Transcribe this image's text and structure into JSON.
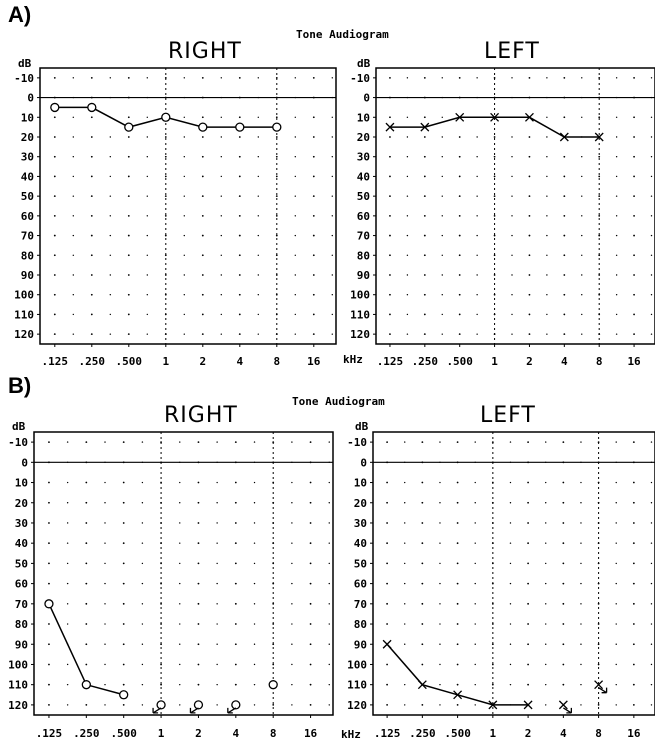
{
  "panels": [
    {
      "label": "A)",
      "system_title": "Tone Audiogram",
      "y_unit": "dB",
      "x_unit_right": "",
      "x_unit_left": "kHz"
    },
    {
      "label": "B)",
      "system_title": "Tone Audiogram",
      "y_unit": "dB",
      "x_unit_right": "",
      "x_unit_left": "kHz"
    }
  ],
  "chart_data": [
    {
      "type": "line",
      "panel": "A)",
      "title": "RIGHT",
      "ylabel": "dB",
      "y_ticks": [
        -10,
        0,
        10,
        20,
        30,
        40,
        50,
        60,
        70,
        80,
        90,
        100,
        110,
        120
      ],
      "ylim": [
        -15,
        125
      ],
      "y_reversed": true,
      "x_ticks": [
        ".125",
        ".250",
        ".500",
        "1",
        "2",
        "4",
        "8",
        "16"
      ],
      "symbol": "o",
      "series": [
        {
          "x": [
            ".125",
            ".250",
            ".500",
            "1",
            "2",
            "4",
            "8"
          ],
          "values": [
            5,
            5,
            15,
            10,
            15,
            15,
            15
          ]
        }
      ],
      "extra_markers": []
    },
    {
      "type": "line",
      "panel": "A)",
      "title": "LEFT",
      "ylabel": "dB",
      "xlabel": "kHz",
      "y_ticks": [
        -10,
        0,
        10,
        20,
        30,
        40,
        50,
        60,
        70,
        80,
        90,
        100,
        110,
        120
      ],
      "ylim": [
        -15,
        125
      ],
      "y_reversed": true,
      "x_ticks": [
        ".125",
        ".250",
        ".500",
        "1",
        "2",
        "4",
        "8",
        "16"
      ],
      "symbol": "x",
      "series": [
        {
          "x": [
            ".125",
            ".250",
            ".500",
            "1",
            "2",
            "4",
            "8"
          ],
          "values": [
            15,
            15,
            10,
            10,
            10,
            20,
            20
          ]
        }
      ],
      "extra_markers": []
    },
    {
      "type": "line",
      "panel": "B)",
      "title": "RIGHT",
      "ylabel": "dB",
      "y_ticks": [
        -10,
        0,
        10,
        20,
        30,
        40,
        50,
        60,
        70,
        80,
        90,
        100,
        110,
        120
      ],
      "ylim": [
        -15,
        125
      ],
      "y_reversed": true,
      "x_ticks": [
        ".125",
        ".250",
        ".500",
        "1",
        "2",
        "4",
        "8",
        "16"
      ],
      "symbol": "o",
      "series": [
        {
          "x": [
            ".125",
            ".250",
            ".500"
          ],
          "values": [
            70,
            110,
            115
          ]
        }
      ],
      "extra_markers": [
        {
          "x": "1",
          "value": 120,
          "no_response": true
        },
        {
          "x": "2",
          "value": 120,
          "no_response": true
        },
        {
          "x": "4",
          "value": 120,
          "no_response": true
        },
        {
          "x": "8",
          "value": 110,
          "no_response": false
        }
      ]
    },
    {
      "type": "line",
      "panel": "B)",
      "title": "LEFT",
      "ylabel": "dB",
      "xlabel": "kHz",
      "y_ticks": [
        -10,
        0,
        10,
        20,
        30,
        40,
        50,
        60,
        70,
        80,
        90,
        100,
        110,
        120
      ],
      "ylim": [
        -15,
        125
      ],
      "y_reversed": true,
      "x_ticks": [
        ".125",
        ".250",
        ".500",
        "1",
        "2",
        "4",
        "8",
        "16"
      ],
      "symbol": "x",
      "series": [
        {
          "x": [
            ".125",
            ".250",
            ".500",
            "1",
            "2"
          ],
          "values": [
            90,
            110,
            115,
            120,
            120
          ]
        }
      ],
      "extra_markers": [
        {
          "x": "4",
          "value": 120,
          "no_response": true
        },
        {
          "x": "8",
          "value": 110,
          "no_response": true
        }
      ]
    }
  ]
}
